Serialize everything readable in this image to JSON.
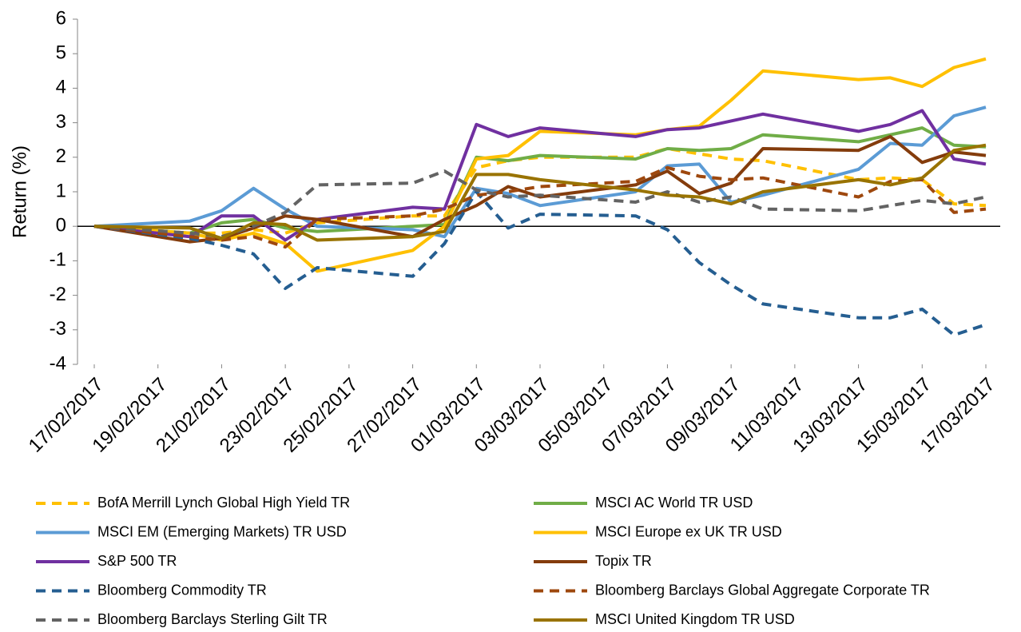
{
  "chart_data": {
    "type": "line",
    "y_label": "Return (%)",
    "x": [
      "17/02/2017",
      "20/02/2017",
      "21/02/2017",
      "22/02/2017",
      "23/02/2017",
      "24/02/2017",
      "27/02/2017",
      "28/02/2017",
      "01/03/2017",
      "02/03/2017",
      "03/03/2017",
      "06/03/2017",
      "07/03/2017",
      "08/03/2017",
      "09/03/2017",
      "10/03/2017",
      "13/03/2017",
      "14/03/2017",
      "15/03/2017",
      "16/03/2017",
      "17/03/2017"
    ],
    "xlim": [
      "17/02/2017",
      "17/03/2017"
    ],
    "xticks": [
      "17/02/2017",
      "19/02/2017",
      "21/02/2017",
      "23/02/2017",
      "25/02/2017",
      "27/02/2017",
      "01/03/2017",
      "03/03/2017",
      "05/03/2017",
      "07/03/2017",
      "09/03/2017",
      "11/03/2017",
      "13/03/2017",
      "15/03/2017",
      "17/03/2017"
    ],
    "ylim": [
      -4,
      6
    ],
    "yticks": [
      -4,
      -3,
      -2,
      -1,
      0,
      1,
      2,
      3,
      4,
      5,
      6
    ],
    "series": [
      {
        "name": "BofA Merrill Lynch Global High Yield TR",
        "color": "#ffc000",
        "dashed": true,
        "values": [
          0,
          -0.2,
          -0.2,
          -0.1,
          -0.2,
          0.1,
          0.3,
          0.3,
          1.7,
          1.9,
          2.0,
          2.0,
          2.25,
          2.1,
          1.95,
          1.9,
          1.35,
          1.4,
          1.35,
          0.65,
          0.6
        ]
      },
      {
        "name": "MSCI AC World TR USD",
        "color": "#70ad47",
        "dashed": false,
        "values": [
          0,
          -0.2,
          0.1,
          0.2,
          -0.05,
          -0.15,
          0.0,
          0.05,
          2.0,
          1.9,
          2.05,
          1.95,
          2.25,
          2.2,
          2.25,
          2.65,
          2.45,
          2.65,
          2.85,
          2.35,
          2.3
        ]
      },
      {
        "name": "MSCI EM (Emerging Markets) TR USD",
        "color": "#5b9bd5",
        "dashed": false,
        "values": [
          0,
          0.15,
          0.45,
          1.1,
          0.5,
          0.0,
          -0.1,
          -0.3,
          1.1,
          0.95,
          0.6,
          1.0,
          1.75,
          1.8,
          0.7,
          0.9,
          1.65,
          2.4,
          2.35,
          3.2,
          3.45
        ]
      },
      {
        "name": "MSCI Europe ex UK TR USD",
        "color": "#ffc000",
        "dashed": false,
        "values": [
          0,
          -0.2,
          -0.4,
          -0.2,
          -0.5,
          -1.3,
          -0.7,
          0.0,
          1.95,
          2.05,
          2.75,
          2.65,
          2.8,
          2.9,
          3.65,
          4.5,
          4.25,
          4.3,
          4.05,
          4.6,
          4.85
        ]
      },
      {
        "name": "S&P 500 TR",
        "color": "#7030a0",
        "dashed": false,
        "values": [
          0,
          -0.3,
          0.3,
          0.3,
          -0.4,
          0.2,
          0.55,
          0.5,
          2.95,
          2.6,
          2.85,
          2.6,
          2.8,
          2.85,
          3.05,
          3.25,
          2.75,
          2.95,
          3.35,
          1.95,
          1.8
        ]
      },
      {
        "name": "Topix TR",
        "color": "#843c0c",
        "dashed": false,
        "values": [
          0,
          -0.45,
          -0.35,
          -0.05,
          0.3,
          0.2,
          -0.3,
          0.2,
          0.6,
          1.15,
          0.85,
          1.2,
          1.6,
          0.95,
          1.25,
          2.25,
          2.2,
          2.6,
          1.85,
          2.15,
          2.05
        ]
      },
      {
        "name": "Bloomberg Commodity TR",
        "color": "#255e91",
        "dashed": true,
        "values": [
          0,
          -0.35,
          -0.55,
          -0.8,
          -1.8,
          -1.2,
          -1.45,
          -0.5,
          1.0,
          -0.05,
          0.35,
          0.3,
          -0.1,
          -1.05,
          -1.7,
          -2.25,
          -2.65,
          -2.65,
          -2.4,
          -3.15,
          -2.85
        ]
      },
      {
        "name": "Bloomberg Barclays Global Aggregate Corporate TR",
        "color": "#9e480e",
        "dashed": true,
        "values": [
          0,
          -0.3,
          -0.4,
          -0.3,
          -0.6,
          0.2,
          0.3,
          0.5,
          0.9,
          1.0,
          1.15,
          1.3,
          1.7,
          1.45,
          1.35,
          1.4,
          0.85,
          1.3,
          1.35,
          0.4,
          0.5
        ]
      },
      {
        "name": "Bloomberg Barclays Sterling Gilt TR",
        "color": "#636363",
        "dashed": true,
        "values": [
          0,
          -0.2,
          -0.3,
          0.0,
          0.4,
          1.2,
          1.25,
          1.6,
          1.05,
          0.85,
          0.9,
          0.7,
          1.0,
          0.7,
          0.85,
          0.5,
          0.45,
          0.6,
          0.75,
          0.65,
          0.85
        ]
      },
      {
        "name": "MSCI United Kingdom TR USD",
        "color": "#997300",
        "dashed": false,
        "values": [
          0,
          -0.05,
          -0.35,
          0.1,
          0.05,
          -0.4,
          -0.3,
          -0.15,
          1.5,
          1.5,
          1.35,
          1.05,
          0.9,
          0.85,
          0.65,
          1.0,
          1.35,
          1.2,
          1.4,
          2.2,
          2.35
        ]
      }
    ]
  }
}
